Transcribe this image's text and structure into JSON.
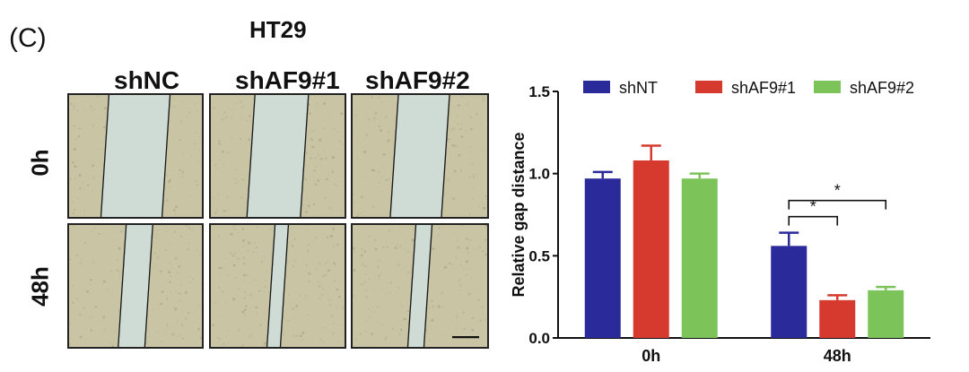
{
  "figure": {
    "panel_letter": "(C)",
    "cell_line": "HT29",
    "image_columns": [
      "shNC",
      "shAF9#1",
      "shAF9#2"
    ],
    "image_rows": [
      "0h",
      "48h"
    ]
  },
  "colors": {
    "shNT": "#2a2a9a",
    "shAF9#1": "#d63a2f",
    "shAF9#2": "#7cc45a",
    "tissue": "#c9c4a3",
    "gap": "#cfdcd6",
    "line": "#1a1a1a"
  },
  "micrographs": [
    {
      "name": "0h-shNC",
      "gap_fraction": 0.46
    },
    {
      "name": "0h-shAF9#1",
      "gap_fraction": 0.4
    },
    {
      "name": "0h-shAF9#2",
      "gap_fraction": 0.38
    },
    {
      "name": "48h-shNC",
      "gap_fraction": 0.2
    },
    {
      "name": "48h-shAF9#1",
      "gap_fraction": 0.1
    },
    {
      "name": "48h-shAF9#2",
      "gap_fraction": 0.12
    }
  ],
  "chart_data": {
    "type": "bar",
    "title": "",
    "xlabel": "",
    "ylabel": "Relative gap distance",
    "ylim": [
      0,
      1.5
    ],
    "yticks": [
      "0.0",
      "0.5",
      "1.0",
      "1.5"
    ],
    "categories": [
      "0h",
      "48h"
    ],
    "series": [
      {
        "name": "shNT",
        "values": [
          0.97,
          0.56
        ],
        "errors": [
          0.04,
          0.08
        ]
      },
      {
        "name": "shAF9#1",
        "values": [
          1.08,
          0.23
        ],
        "errors": [
          0.09,
          0.03
        ]
      },
      {
        "name": "shAF9#2",
        "values": [
          0.97,
          0.29
        ],
        "errors": [
          0.03,
          0.02
        ]
      }
    ],
    "significance": [
      {
        "category": "48h",
        "from": "shNT",
        "to": "shAF9#1",
        "label": "*"
      },
      {
        "category": "48h",
        "from": "shNT",
        "to": "shAF9#2",
        "label": "*"
      }
    ],
    "legend_position": "top"
  }
}
